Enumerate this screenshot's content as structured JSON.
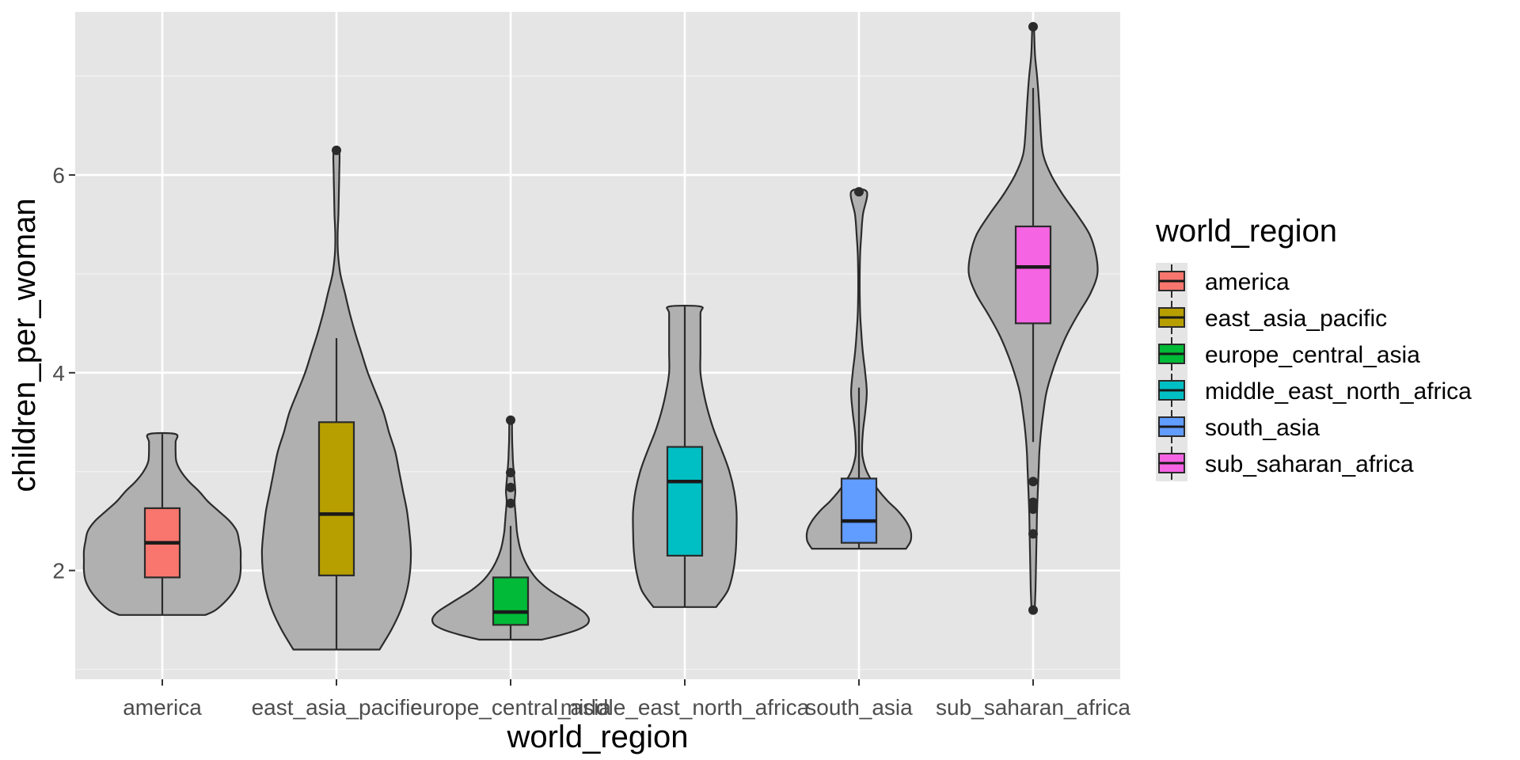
{
  "chart_data": {
    "type": "violin",
    "xlabel": "world_region",
    "ylabel": "children_per_woman",
    "ylim": [
      0.9,
      7.65
    ],
    "yticks": [
      2,
      4,
      6
    ],
    "grid": true,
    "legend": {
      "title": "world_region",
      "placement": "right"
    },
    "categories": [
      "america",
      "east_asia_pacific",
      "europe_central_asia",
      "middle_east_north_africa",
      "south_asia",
      "sub_saharan_africa"
    ],
    "colors": [
      "#F8766D",
      "#B79F00",
      "#00BA38",
      "#00BFC4",
      "#619CFF",
      "#F564E3"
    ],
    "violin_fill": "#B0B0B0",
    "panel_background": "#E5E5E5",
    "series": [
      {
        "name": "america",
        "box": {
          "min": 1.55,
          "q1": 1.93,
          "median": 2.28,
          "q3": 2.63,
          "max": 3.38
        },
        "outliers": [],
        "density": [
          [
            1.55,
            0.55
          ],
          [
            1.6,
            0.68
          ],
          [
            1.7,
            0.82
          ],
          [
            1.8,
            0.92
          ],
          [
            1.9,
            0.98
          ],
          [
            2.0,
            1.0
          ],
          [
            2.1,
            1.0
          ],
          [
            2.2,
            1.0
          ],
          [
            2.3,
            0.98
          ],
          [
            2.4,
            0.95
          ],
          [
            2.5,
            0.86
          ],
          [
            2.6,
            0.72
          ],
          [
            2.7,
            0.58
          ],
          [
            2.8,
            0.47
          ],
          [
            2.9,
            0.34
          ],
          [
            3.0,
            0.24
          ],
          [
            3.1,
            0.18
          ],
          [
            3.2,
            0.17
          ],
          [
            3.3,
            0.17
          ],
          [
            3.38,
            0.17
          ]
        ]
      },
      {
        "name": "east_asia_pacific",
        "box": {
          "min": 1.2,
          "q1": 1.95,
          "median": 2.57,
          "q3": 3.5,
          "max": 4.35
        },
        "outliers": [
          6.25
        ],
        "density": [
          [
            1.2,
            0.55
          ],
          [
            1.4,
            0.7
          ],
          [
            1.6,
            0.82
          ],
          [
            1.8,
            0.9
          ],
          [
            2.0,
            0.94
          ],
          [
            2.2,
            0.95
          ],
          [
            2.4,
            0.93
          ],
          [
            2.6,
            0.9
          ],
          [
            2.8,
            0.85
          ],
          [
            3.0,
            0.8
          ],
          [
            3.2,
            0.75
          ],
          [
            3.4,
            0.67
          ],
          [
            3.6,
            0.6
          ],
          [
            3.8,
            0.5
          ],
          [
            4.0,
            0.4
          ],
          [
            4.2,
            0.32
          ],
          [
            4.4,
            0.24
          ],
          [
            4.6,
            0.17
          ],
          [
            4.8,
            0.11
          ],
          [
            5.0,
            0.05
          ],
          [
            5.2,
            0.02
          ],
          [
            5.4,
            0.015
          ],
          [
            5.6,
            0.025
          ],
          [
            5.8,
            0.03
          ],
          [
            6.0,
            0.035
          ],
          [
            6.25,
            0.035
          ]
        ]
      },
      {
        "name": "europe_central_asia",
        "box": {
          "min": 1.3,
          "q1": 1.45,
          "median": 1.58,
          "q3": 1.93,
          "max": 2.45
        },
        "outliers": [
          2.68,
          2.84,
          2.99,
          3.52
        ],
        "density": [
          [
            1.3,
            0.4
          ],
          [
            1.35,
            0.65
          ],
          [
            1.4,
            0.85
          ],
          [
            1.45,
            0.97
          ],
          [
            1.5,
            1.0
          ],
          [
            1.55,
            0.97
          ],
          [
            1.6,
            0.9
          ],
          [
            1.7,
            0.7
          ],
          [
            1.8,
            0.5
          ],
          [
            1.9,
            0.35
          ],
          [
            2.0,
            0.25
          ],
          [
            2.1,
            0.18
          ],
          [
            2.2,
            0.13
          ],
          [
            2.3,
            0.1
          ],
          [
            2.4,
            0.08
          ],
          [
            2.5,
            0.07
          ],
          [
            2.6,
            0.06
          ],
          [
            2.7,
            0.05
          ],
          [
            2.8,
            0.06
          ],
          [
            2.9,
            0.05
          ],
          [
            3.0,
            0.04
          ],
          [
            3.1,
            0.03
          ],
          [
            3.2,
            0.025
          ],
          [
            3.3,
            0.02
          ],
          [
            3.4,
            0.018
          ],
          [
            3.52,
            0.015
          ]
        ]
      },
      {
        "name": "middle_east_north_africa",
        "box": {
          "min": 1.63,
          "q1": 2.15,
          "median": 2.9,
          "q3": 3.25,
          "max": 4.67
        },
        "outliers": [],
        "density": [
          [
            1.63,
            0.4
          ],
          [
            1.8,
            0.55
          ],
          [
            2.0,
            0.62
          ],
          [
            2.2,
            0.65
          ],
          [
            2.4,
            0.66
          ],
          [
            2.6,
            0.66
          ],
          [
            2.8,
            0.63
          ],
          [
            3.0,
            0.57
          ],
          [
            3.2,
            0.48
          ],
          [
            3.4,
            0.38
          ],
          [
            3.6,
            0.3
          ],
          [
            3.8,
            0.24
          ],
          [
            4.0,
            0.2
          ],
          [
            4.2,
            0.2
          ],
          [
            4.4,
            0.2
          ],
          [
            4.6,
            0.2
          ],
          [
            4.67,
            0.2
          ]
        ]
      },
      {
        "name": "south_asia",
        "box": {
          "min": 2.22,
          "q1": 2.28,
          "median": 2.5,
          "q3": 2.93,
          "max": 3.85
        },
        "outliers": [
          5.83
        ],
        "density": [
          [
            2.22,
            0.6
          ],
          [
            2.3,
            0.66
          ],
          [
            2.4,
            0.66
          ],
          [
            2.5,
            0.6
          ],
          [
            2.6,
            0.5
          ],
          [
            2.7,
            0.37
          ],
          [
            2.8,
            0.26
          ],
          [
            2.9,
            0.17
          ],
          [
            3.0,
            0.1
          ],
          [
            3.1,
            0.06
          ],
          [
            3.2,
            0.04
          ],
          [
            3.4,
            0.05
          ],
          [
            3.6,
            0.08
          ],
          [
            3.8,
            0.1
          ],
          [
            4.0,
            0.08
          ],
          [
            4.2,
            0.05
          ],
          [
            4.4,
            0.03
          ],
          [
            4.6,
            0.015
          ],
          [
            4.8,
            0.01
          ],
          [
            5.0,
            0.01
          ],
          [
            5.2,
            0.015
          ],
          [
            5.4,
            0.03
          ],
          [
            5.6,
            0.05
          ],
          [
            5.83,
            0.1
          ]
        ]
      },
      {
        "name": "sub_saharan_africa",
        "box": {
          "min": 3.3,
          "q1": 4.5,
          "median": 5.07,
          "q3": 5.48,
          "max": 6.88
        },
        "outliers": [
          1.6,
          2.37,
          2.62,
          2.69,
          2.9,
          7.5
        ],
        "density": [
          [
            1.6,
            0.02
          ],
          [
            1.8,
            0.03
          ],
          [
            2.0,
            0.035
          ],
          [
            2.2,
            0.04
          ],
          [
            2.4,
            0.045
          ],
          [
            2.6,
            0.05
          ],
          [
            2.8,
            0.06
          ],
          [
            3.0,
            0.07
          ],
          [
            3.2,
            0.08
          ],
          [
            3.4,
            0.1
          ],
          [
            3.6,
            0.13
          ],
          [
            3.8,
            0.17
          ],
          [
            4.0,
            0.24
          ],
          [
            4.2,
            0.33
          ],
          [
            4.4,
            0.44
          ],
          [
            4.6,
            0.58
          ],
          [
            4.8,
            0.73
          ],
          [
            5.0,
            0.82
          ],
          [
            5.2,
            0.8
          ],
          [
            5.4,
            0.72
          ],
          [
            5.6,
            0.56
          ],
          [
            5.8,
            0.38
          ],
          [
            6.0,
            0.23
          ],
          [
            6.2,
            0.13
          ],
          [
            6.4,
            0.1
          ],
          [
            6.6,
            0.085
          ],
          [
            6.8,
            0.07
          ],
          [
            7.0,
            0.05
          ],
          [
            7.2,
            0.025
          ],
          [
            7.4,
            0.015
          ],
          [
            7.5,
            0.01
          ]
        ]
      }
    ]
  }
}
